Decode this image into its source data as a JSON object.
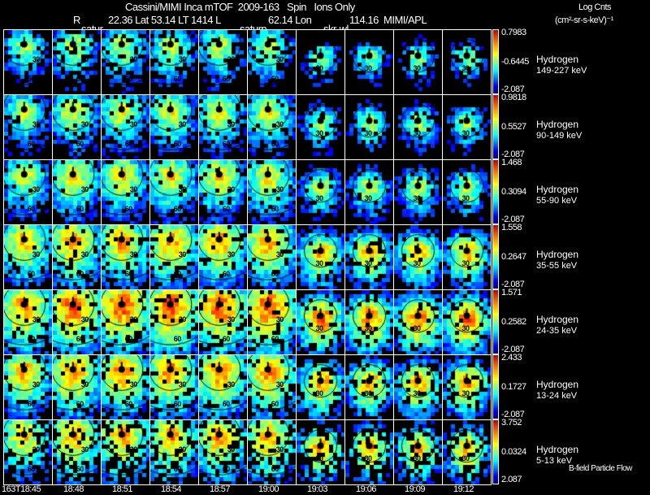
{
  "header": {
    "title": "Cassini/MIMI Inca mTOF  2009-163   Spin   Ions Only",
    "r_label": "R",
    "position": "22.36 Lat 53.14 LT 1414 L",
    "l_value": "62.14 Lon",
    "lon_value": "114.16  MIMI/APL",
    "overlay_labels": [
      "satur",
      "saturn",
      "skr-wl"
    ],
    "units_title": "Log Cnts",
    "units": "(cm²-sr-s-keV)⁻¹"
  },
  "footer": {
    "legend": "B-field Particle Flow"
  },
  "chart_data": {
    "type": "heatmap",
    "title": "Cassini/MIMI Inca mTOF  2009-163   Spin   Ions Only",
    "times": [
      "163T18:45",
      "18:48",
      "18:51",
      "18:54",
      "18:57",
      "19:00",
      "19:03",
      "19:06",
      "19:09",
      "19:12"
    ],
    "contour_labels": [
      "30",
      "60"
    ],
    "rows": [
      {
        "species": "Hydrogen",
        "energy": "149-227 keV",
        "max": "0.7983",
        "mid": "-0.6445",
        "min": "-2.087"
      },
      {
        "species": "Hydrogen",
        "energy": "90-149 keV",
        "max": "0.9818",
        "mid": "0.5527",
        "min": "-2.087"
      },
      {
        "species": "Hydrogen",
        "energy": "55-90 keV",
        "max": "1.468",
        "mid": "0.3094",
        "min": "-2.087"
      },
      {
        "species": "Hydrogen",
        "energy": "35-55 keV",
        "max": "1.558",
        "mid": "0.2647",
        "min": "-2.087"
      },
      {
        "species": "Hydrogen",
        "energy": "24-35 keV",
        "max": "1.571",
        "mid": "0.2582",
        "min": "-2.087"
      },
      {
        "species": "Hydrogen",
        "energy": "13-24 keV",
        "max": "2.433",
        "mid": "0.1727",
        "min": "-2.087"
      },
      {
        "species": "Hydrogen",
        "energy": "5-13 keV",
        "max": "3.752",
        "mid": "0.0324",
        "min": "2.087"
      }
    ],
    "colorscale": "jet"
  }
}
